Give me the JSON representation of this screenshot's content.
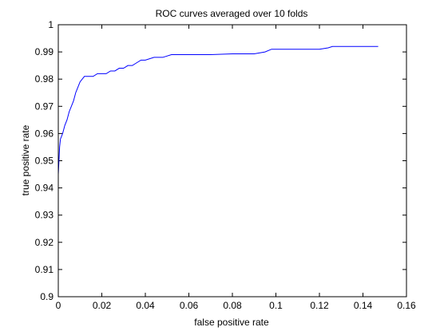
{
  "chart_data": {
    "type": "line",
    "title": "ROC curves averaged over 10 folds",
    "xlabel": "false positive rate",
    "ylabel": "true positive rate",
    "xlim": [
      0,
      0.16
    ],
    "ylim": [
      0.9,
      1.0
    ],
    "xticks": [
      0,
      0.02,
      0.04,
      0.06,
      0.08,
      0.1,
      0.12,
      0.14,
      0.16
    ],
    "xtick_labels": [
      "0",
      "0.02",
      "0.04",
      "0.06",
      "0.08",
      "0.1",
      "0.12",
      "0.14",
      "0.16"
    ],
    "yticks": [
      0.9,
      0.91,
      0.92,
      0.93,
      0.94,
      0.95,
      0.96,
      0.97,
      0.98,
      0.99,
      1.0
    ],
    "ytick_labels": [
      "0.9",
      "0.91",
      "0.92",
      "0.93",
      "0.94",
      "0.95",
      "0.96",
      "0.97",
      "0.98",
      "0.99",
      "1"
    ],
    "grid": false,
    "line_color": "#0000ff",
    "series": [
      {
        "x": [
          0,
          0,
          0.0003,
          0.0006,
          0.001,
          0.0015,
          0.002,
          0.003,
          0.004,
          0.005,
          0.006,
          0.007,
          0.008,
          0.009,
          0.01,
          0.011,
          0.012,
          0.013,
          0.014,
          0.016,
          0.018,
          0.02,
          0.022,
          0.024,
          0.026,
          0.028,
          0.03,
          0.032,
          0.034,
          0.036,
          0.038,
          0.04,
          0.044,
          0.048,
          0.052,
          0.056,
          0.06,
          0.07,
          0.08,
          0.09,
          0.095,
          0.098,
          0.1,
          0.11,
          0.12,
          0.124,
          0.126,
          0.13,
          0.14,
          0.147
        ],
        "y": [
          0.937,
          0.945,
          0.95,
          0.955,
          0.958,
          0.959,
          0.96,
          0.963,
          0.965,
          0.968,
          0.97,
          0.972,
          0.975,
          0.977,
          0.979,
          0.98,
          0.981,
          0.981,
          0.981,
          0.981,
          0.982,
          0.982,
          0.982,
          0.983,
          0.983,
          0.984,
          0.984,
          0.985,
          0.985,
          0.986,
          0.987,
          0.987,
          0.988,
          0.988,
          0.989,
          0.989,
          0.989,
          0.989,
          0.9893,
          0.9893,
          0.99,
          0.991,
          0.991,
          0.991,
          0.991,
          0.9915,
          0.992,
          0.992,
          0.992,
          0.992
        ]
      }
    ]
  }
}
